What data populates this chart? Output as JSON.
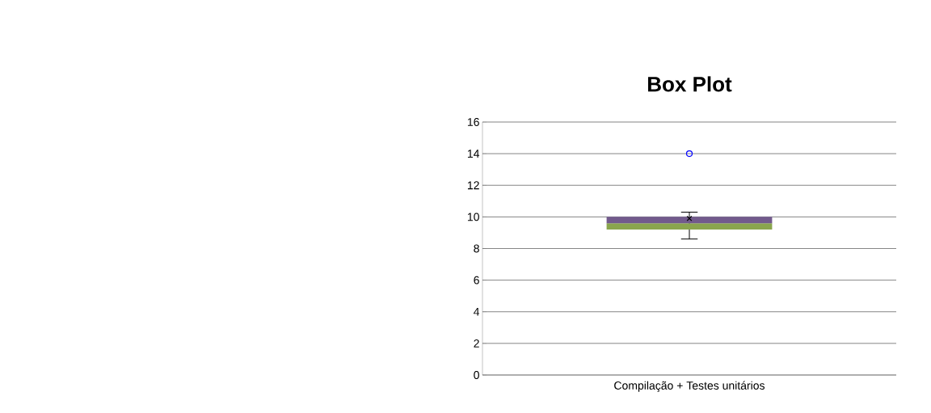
{
  "chart_data": {
    "type": "box",
    "title": "Box Plot",
    "categories": [
      "Compilação + Testes unitários"
    ],
    "series": [
      {
        "color": "#8aa54d",
        "boxes": [
          {
            "low": 8.6,
            "q1": 9.2,
            "median": 9.6,
            "q3": 10,
            "high": 10.3,
            "mean": 9.9,
            "outliers": [
              14
            ]
          }
        ]
      }
    ],
    "ylim": [
      0,
      16
    ],
    "yticks": [
      0,
      2,
      4,
      6,
      8,
      10,
      12,
      14,
      16
    ],
    "grid": "y"
  }
}
